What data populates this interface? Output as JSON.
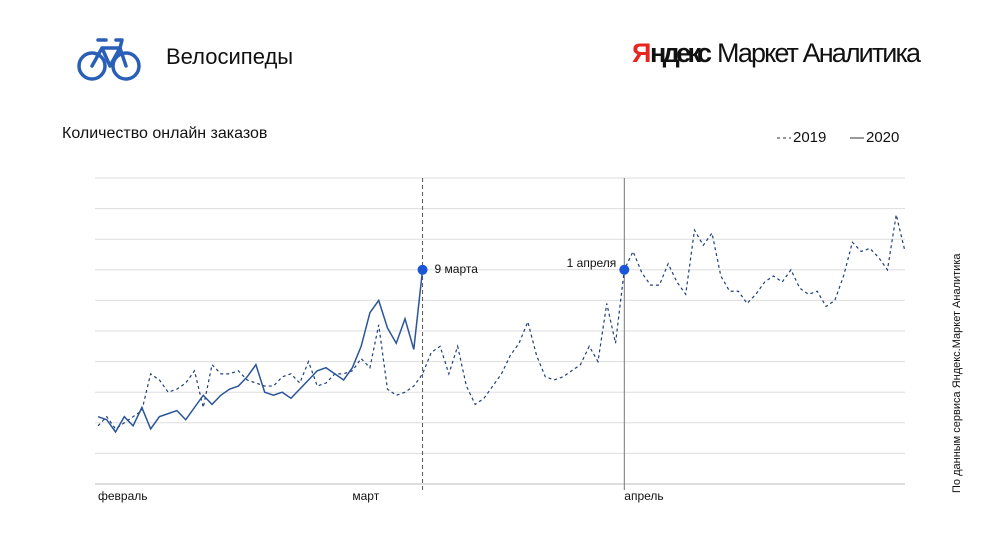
{
  "header": {
    "title": "Велосипеды",
    "logo_first": "Я",
    "logo_rest": "ндекс",
    "logo_product": "Маркет Аналитика"
  },
  "source": "По данным сервиса Яндекс.Маркет Аналитика",
  "chart_data": {
    "type": "line",
    "title": "Количество онлайн заказов",
    "xlim": [
      0,
      92
    ],
    "xticks": [
      {
        "value": 0,
        "label": "февраль"
      },
      {
        "value": 29,
        "label": "март"
      },
      {
        "value": 60,
        "label": "апрель"
      }
    ],
    "ylim": [
      0,
      10
    ],
    "yticks": [
      0,
      1,
      2,
      3,
      4,
      5,
      6,
      7,
      8,
      9,
      10
    ],
    "grid": true,
    "series": [
      {
        "name": "2019",
        "color": "#1f3f78",
        "dash": true,
        "values": [
          1.9,
          2.2,
          1.8,
          2.0,
          2.2,
          2.4,
          3.6,
          3.4,
          3.0,
          3.1,
          3.3,
          3.7,
          2.5,
          3.9,
          3.6,
          3.6,
          3.7,
          3.4,
          3.3,
          3.2,
          3.2,
          3.5,
          3.6,
          3.3,
          4.0,
          3.2,
          3.3,
          3.6,
          3.6,
          3.7,
          4.1,
          3.8,
          5.2,
          3.1,
          2.9,
          3.0,
          3.2,
          3.6,
          4.3,
          4.5,
          3.6,
          4.5,
          3.2,
          2.6,
          2.8,
          3.2,
          3.6,
          4.2,
          4.6,
          5.3,
          4.2,
          3.5,
          3.4,
          3.5,
          3.7,
          3.9,
          4.5,
          4.0,
          5.9,
          4.6,
          7.0,
          7.6,
          6.9,
          6.5,
          6.5,
          7.2,
          6.6,
          6.2,
          8.3,
          7.8,
          8.2,
          6.8,
          6.3,
          6.3,
          5.9,
          6.2,
          6.6,
          6.8,
          6.6,
          7.0,
          6.4,
          6.2,
          6.3,
          5.8,
          6.0,
          6.8,
          7.9,
          7.6,
          7.7,
          7.4,
          7.0,
          8.8,
          7.6
        ]
      },
      {
        "name": "2020",
        "color": "#2a5598",
        "dash": false,
        "values": [
          2.2,
          2.1,
          1.7,
          2.2,
          1.9,
          2.5,
          1.8,
          2.2,
          2.3,
          2.4,
          2.1,
          2.5,
          2.9,
          2.6,
          2.9,
          3.1,
          3.2,
          3.5,
          3.9,
          3.0,
          2.9,
          3.0,
          2.8,
          3.1,
          3.4,
          3.7,
          3.8,
          3.6,
          3.4,
          3.8,
          4.5,
          5.6,
          6.0,
          5.1,
          4.6,
          5.4,
          4.4,
          7.0
        ]
      }
    ],
    "annotations": [
      {
        "label": "9 марта",
        "x": 37,
        "y": 7.0,
        "line": "dashed"
      },
      {
        "label": "1 апреля",
        "x": 60,
        "y": 7.0,
        "line": "solid"
      }
    ]
  }
}
